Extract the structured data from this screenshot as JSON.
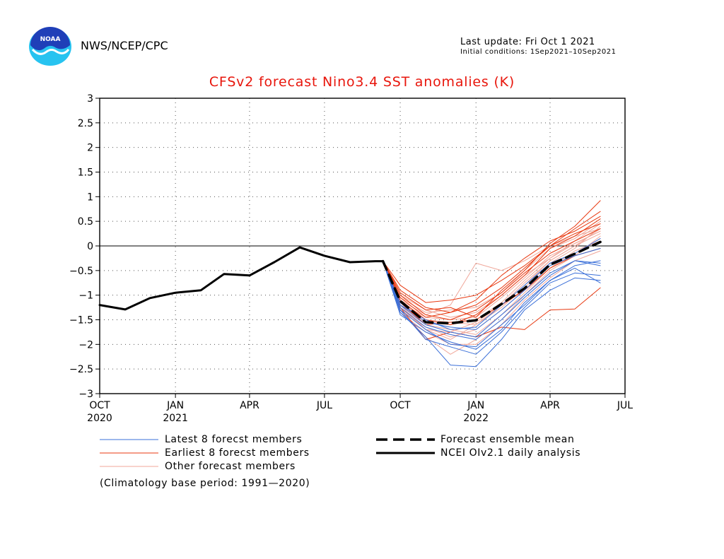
{
  "header": {
    "org": "NWS/NCEP/CPC",
    "last_update": "Last update: Fri Oct 1 2021",
    "initial_conditions": "Initial conditions: 1Sep2021–10Sep2021",
    "logo_text": "NOAA"
  },
  "colors": {
    "title": "#e8160c",
    "latest": "#3a6fd8",
    "earliest": "#e83a12",
    "other": "#f0a79a",
    "mean": "#000000",
    "analysis": "#000000",
    "logo_blue": "#1f3fb8",
    "logo_cyan": "#27c3f0"
  },
  "chart_data": {
    "type": "line",
    "title": "CFSv2 forecast Nino3.4 SST anomalies (K)",
    "xlabel": "",
    "ylabel": "",
    "ylim": [
      -3,
      3
    ],
    "yticks": [
      3,
      2.5,
      2,
      1.5,
      1,
      0.5,
      0,
      -0.5,
      -1,
      -1.5,
      -2,
      -2.5,
      -3
    ],
    "ytick_labels": [
      "3",
      "2.5",
      "2",
      "1.5",
      "1",
      "0.5",
      "0",
      "−0.5",
      "−1",
      "−1.5",
      "−2",
      "−2.5",
      "−3"
    ],
    "xlim": [
      "2020-10-01",
      "2022-07-01"
    ],
    "xticks": [
      {
        "date": "2020-10-01",
        "label": "OCT",
        "year": "2020"
      },
      {
        "date": "2021-01-01",
        "label": "JAN",
        "year": "2021"
      },
      {
        "date": "2021-04-01",
        "label": "APR",
        "year": ""
      },
      {
        "date": "2021-07-01",
        "label": "JUL",
        "year": ""
      },
      {
        "date": "2021-10-01",
        "label": "OCT",
        "year": ""
      },
      {
        "date": "2022-01-01",
        "label": "JAN",
        "year": "2022"
      },
      {
        "date": "2022-04-01",
        "label": "APR",
        "year": ""
      },
      {
        "date": "2022-07-01",
        "label": "JUL",
        "year": ""
      }
    ],
    "grid": true,
    "zero_line": true,
    "legend_placement": "below plot",
    "analysis": {
      "name": "NCEI OIv2.1 daily analysis",
      "points": [
        [
          "2020-10-01",
          -1.2
        ],
        [
          "2020-11-01",
          -1.29
        ],
        [
          "2020-12-01",
          -1.06
        ],
        [
          "2021-01-01",
          -0.95
        ],
        [
          "2021-02-01",
          -0.9
        ],
        [
          "2021-03-01",
          -0.57
        ],
        [
          "2021-04-01",
          -0.6
        ],
        [
          "2021-05-01",
          -0.33
        ],
        [
          "2021-06-01",
          -0.03
        ],
        [
          "2021-07-01",
          -0.2
        ],
        [
          "2021-08-01",
          -0.33
        ],
        [
          "2021-09-01",
          -0.31
        ],
        [
          "2021-09-10",
          -0.31
        ]
      ]
    },
    "mean": {
      "name": "Forecast ensemble mean",
      "points": [
        [
          "2021-09-10",
          -0.31
        ],
        [
          "2021-10-01",
          -1.12
        ],
        [
          "2021-11-01",
          -1.55
        ],
        [
          "2021-12-01",
          -1.57
        ],
        [
          "2022-01-01",
          -1.51
        ],
        [
          "2022-02-01",
          -1.18
        ],
        [
          "2022-03-01",
          -0.86
        ],
        [
          "2022-04-01",
          -0.38
        ],
        [
          "2022-05-01",
          -0.16
        ],
        [
          "2022-06-01",
          0.08
        ]
      ]
    },
    "forecast_months": [
      "2021-09-10",
      "2021-10-01",
      "2021-11-01",
      "2021-12-01",
      "2022-01-01",
      "2022-02-01",
      "2022-03-01",
      "2022-04-01",
      "2022-05-01",
      "2022-06-01"
    ],
    "latest_members": {
      "name": "Latest 8 forecst members",
      "values": [
        [
          -0.31,
          -1.35,
          -1.85,
          -2.42,
          -2.45,
          -1.9,
          -1.3,
          -0.9,
          -0.65,
          -0.7
        ],
        [
          -0.31,
          -1.3,
          -1.7,
          -2.0,
          -2.05,
          -1.6,
          -1.2,
          -0.7,
          -0.45,
          -0.75
        ],
        [
          -0.31,
          -1.2,
          -1.6,
          -1.75,
          -1.85,
          -1.4,
          -1.0,
          -0.55,
          -0.3,
          -0.35
        ],
        [
          -0.31,
          -1.25,
          -1.65,
          -1.8,
          -1.9,
          -1.5,
          -1.05,
          -0.6,
          -0.3,
          -0.4
        ],
        [
          -0.31,
          -1.15,
          -1.55,
          -1.65,
          -1.7,
          -1.3,
          -0.9,
          -0.4,
          -0.2,
          -0.05
        ],
        [
          -0.31,
          -1.3,
          -1.9,
          -2.05,
          -2.2,
          -1.75,
          -1.25,
          -0.75,
          -0.55,
          -0.6
        ],
        [
          -0.31,
          -1.4,
          -1.75,
          -1.95,
          -2.1,
          -1.7,
          -1.15,
          -0.7,
          -0.4,
          -0.3
        ],
        [
          -0.31,
          -1.2,
          -1.5,
          -1.7,
          -1.65,
          -1.2,
          -0.8,
          -0.35,
          -0.15,
          0.15
        ]
      ]
    },
    "earliest_members": {
      "name": "Earliest 8 forecst members",
      "values": [
        [
          -0.31,
          -0.95,
          -1.3,
          -1.25,
          -1.45,
          -0.9,
          -0.5,
          0.05,
          0.4,
          0.92
        ],
        [
          -0.31,
          -0.8,
          -1.15,
          -1.1,
          -1.0,
          -0.7,
          -0.4,
          0.0,
          0.35,
          0.7
        ],
        [
          -0.31,
          -1.1,
          -1.5,
          -1.6,
          -1.4,
          -1.0,
          -0.6,
          -0.05,
          0.2,
          0.55
        ],
        [
          -0.31,
          -1.0,
          -1.4,
          -1.5,
          -1.3,
          -0.95,
          -0.55,
          -0.15,
          0.1,
          0.35
        ],
        [
          -0.31,
          -1.25,
          -1.9,
          -1.75,
          -1.85,
          -1.65,
          -1.7,
          -1.3,
          -1.28,
          -0.85
        ],
        [
          -0.31,
          -1.15,
          -1.6,
          -1.55,
          -1.5,
          -1.2,
          -0.9,
          -0.45,
          -0.2,
          -0.05
        ],
        [
          -0.31,
          -1.05,
          -1.45,
          -1.35,
          -1.2,
          -0.85,
          -0.45,
          0.0,
          0.25,
          0.45
        ],
        [
          -0.31,
          -0.9,
          -1.25,
          -1.35,
          -1.1,
          -0.6,
          -0.25,
          0.1,
          0.3,
          0.6
        ]
      ]
    },
    "other_members": {
      "name": "Other forecast members",
      "values": [
        [
          -0.31,
          -1.3,
          -1.85,
          -2.2,
          -1.9,
          -1.5,
          -1.0,
          -0.5,
          -0.2,
          0.2
        ],
        [
          -0.31,
          -1.1,
          -1.4,
          -1.2,
          -0.35,
          -0.5,
          -0.3,
          0.0,
          0.2,
          0.35
        ],
        [
          -0.31,
          -1.2,
          -1.7,
          -1.9,
          -1.6,
          -1.2,
          -0.8,
          -0.3,
          0.0,
          0.25
        ],
        [
          -0.31,
          -1.0,
          -1.3,
          -1.45,
          -1.35,
          -1.0,
          -0.6,
          -0.25,
          0.05,
          0.3
        ],
        [
          -0.31,
          -1.25,
          -1.6,
          -1.7,
          -1.8,
          -1.4,
          -0.95,
          -0.45,
          -0.1,
          0.1
        ],
        [
          -0.31,
          -1.15,
          -1.5,
          -1.55,
          -1.6,
          -1.25,
          -0.85,
          -0.35,
          -0.05,
          0.4
        ],
        [
          -0.31,
          -1.35,
          -1.75,
          -2.0,
          -2.0,
          -1.6,
          -1.1,
          -0.65,
          -0.3,
          -0.1
        ],
        [
          -0.31,
          -1.05,
          -1.35,
          -1.3,
          -1.25,
          -0.95,
          -0.5,
          -0.05,
          0.15,
          0.5
        ],
        [
          -0.31,
          -1.2,
          -1.55,
          -1.6,
          -1.5,
          -1.15,
          -0.7,
          -0.25,
          0.1,
          0.45
        ],
        [
          -0.31,
          -1.3,
          -1.65,
          -1.85,
          -1.7,
          -1.3,
          -0.9,
          -0.45,
          -0.15,
          0.15
        ],
        [
          -0.31,
          -1.15,
          -1.45,
          -1.5,
          -1.45,
          -1.05,
          -0.65,
          -0.2,
          0.05,
          0.3
        ],
        [
          -0.31,
          -1.25,
          -1.7,
          -1.75,
          -1.55,
          -1.2,
          -0.75,
          -0.3,
          0.0,
          0.35
        ]
      ]
    }
  },
  "legend": {
    "latest_label": "Latest 8 forecst members",
    "earliest_label": "Earliest 8 forecst members",
    "other_label": "Other forecast members",
    "mean_label": "Forecast ensemble mean",
    "analysis_label": "NCEI OIv2.1 daily analysis",
    "note": "(Climatology base period: 1991—2020)"
  }
}
